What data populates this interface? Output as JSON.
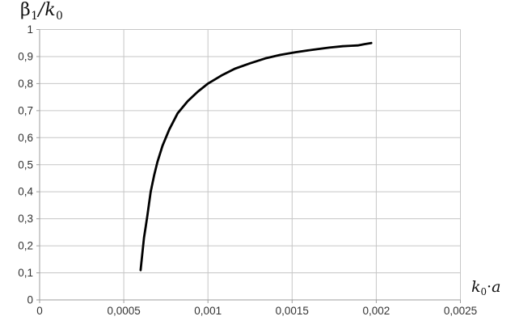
{
  "labels": {
    "title_beta": "β",
    "title_beta_sub": "1",
    "title_slash": "/",
    "title_k": "k",
    "title_k_sub": "0",
    "xlabel_k": "k",
    "xlabel_k_sub": "0",
    "xlabel_dot": "·",
    "xlabel_a": "a"
  },
  "chart_data": {
    "type": "line",
    "title": "",
    "ylabel": "β₁/k₀",
    "xlabel": "k₀·a",
    "xlim": [
      0,
      0.0025
    ],
    "ylim": [
      0,
      1
    ],
    "grid": true,
    "legend": false,
    "x_tick_values": [
      0,
      0.0005,
      0.001,
      0.0015,
      0.002,
      0.0025
    ],
    "x_tick_labels": [
      "0",
      "0,0005",
      "0,001",
      "0,0015",
      "0,002",
      "0,0025"
    ],
    "y_tick_values": [
      0,
      0.1,
      0.2,
      0.3,
      0.4,
      0.5,
      0.6,
      0.7,
      0.8,
      0.9,
      1
    ],
    "y_tick_labels": [
      "0",
      "0,1",
      "0,2",
      "0,3",
      "0,4",
      "0,5",
      "0,6",
      "0,7",
      "0,8",
      "0,9",
      "1"
    ],
    "colors": {
      "line": "#000000",
      "grid": "#c6c6c6",
      "axis": "#9e9e9e",
      "text": "#333333",
      "background": "#ffffff"
    },
    "series": [
      {
        "name": "β₁/k₀",
        "x": [
          0.0006,
          0.00061,
          0.00062,
          0.00063,
          0.00064,
          0.00066,
          0.00068,
          0.0007,
          0.00073,
          0.00077,
          0.00082,
          0.00088,
          0.00094,
          0.001,
          0.00108,
          0.00116,
          0.00125,
          0.00134,
          0.00143,
          0.00152,
          0.00162,
          0.00172,
          0.0018,
          0.00185,
          0.00189,
          0.00193,
          0.00197
        ],
        "y": [
          0.11,
          0.17,
          0.23,
          0.27,
          0.31,
          0.4,
          0.46,
          0.51,
          0.57,
          0.63,
          0.69,
          0.735,
          0.77,
          0.8,
          0.83,
          0.855,
          0.875,
          0.893,
          0.906,
          0.916,
          0.925,
          0.933,
          0.938,
          0.94,
          0.941,
          0.946,
          0.95
        ]
      }
    ]
  }
}
